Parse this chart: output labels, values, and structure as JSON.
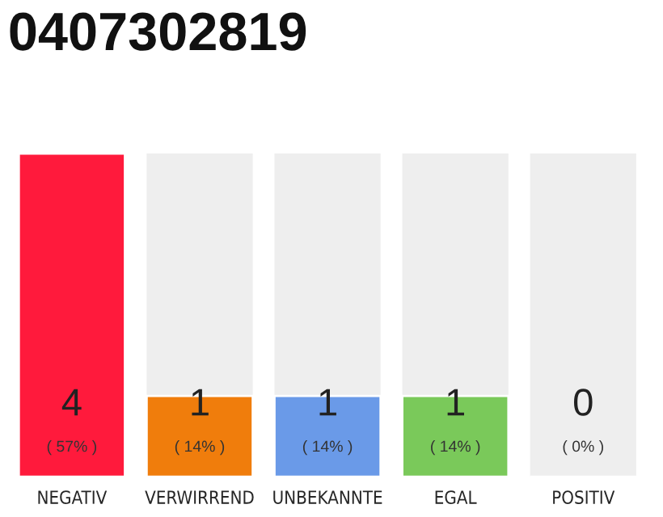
{
  "chart_data": {
    "type": "bar",
    "title": "0407302819",
    "categories": [
      "NEGATIV",
      "VERWIRREND",
      "UNBEKANNTE",
      "EGAL",
      "POSITIV"
    ],
    "values": [
      4,
      1,
      1,
      1,
      0
    ],
    "colors": [
      "#ff1a3c",
      "#f07d0c",
      "#6a9ae8",
      "#7ac95a",
      null
    ],
    "value_labels": [
      "4",
      "1",
      "1",
      "1",
      "0"
    ],
    "annotations": [
      "( 57% )",
      "( 14% )",
      "( 14% )",
      "( 14% )",
      "( 0% )"
    ]
  }
}
